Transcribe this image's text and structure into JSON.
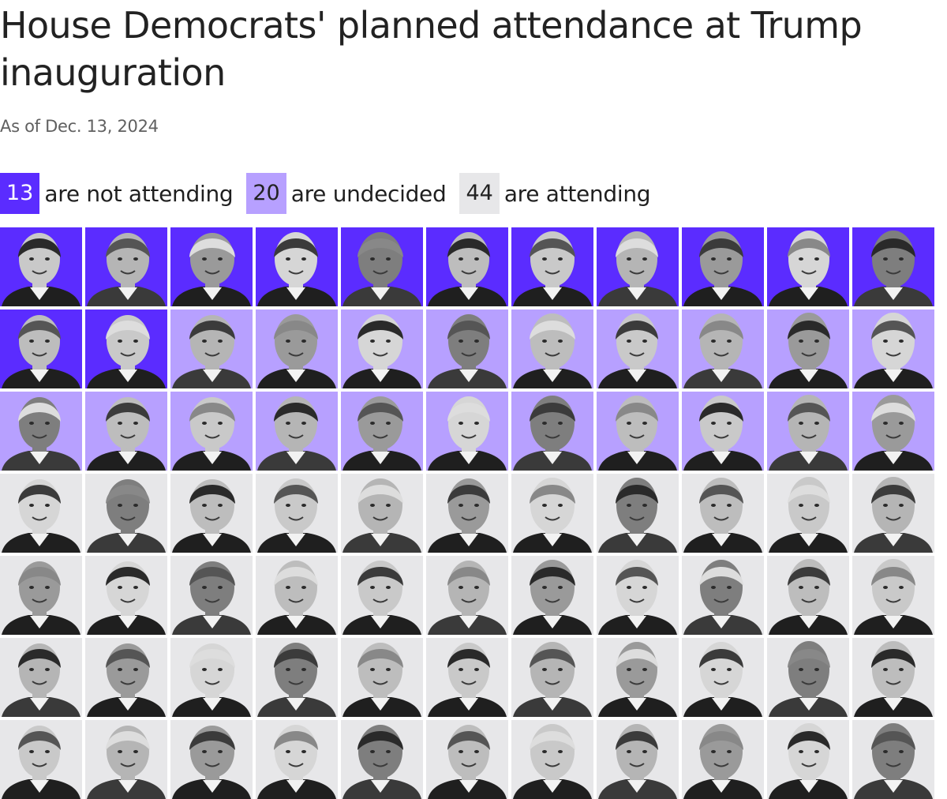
{
  "title": "House Democrats' planned attendance at Trump inauguration",
  "subtitle": "As of Dec. 13, 2024",
  "colors": {
    "not_attending": "#5b2cff",
    "undecided": "#b7a0ff",
    "attending": "#e7e7e9",
    "text_on_not_attending": "#ffffff",
    "text_on_other": "#222222"
  },
  "chart_data": {
    "type": "table",
    "title": "House Democrats' planned attendance at Trump inauguration",
    "subtitle": "As of Dec. 13, 2024",
    "categories": [
      "are not attending",
      "are undecided",
      "are attending"
    ],
    "values": [
      13,
      20,
      44
    ],
    "legend": [
      {
        "key": "not_attending",
        "count": "13",
        "label": "are not attending"
      },
      {
        "key": "undecided",
        "count": "20",
        "label": "are undecided"
      },
      {
        "key": "attending",
        "count": "44",
        "label": "are attending"
      }
    ],
    "grid_columns": 11,
    "total_members": 77
  }
}
